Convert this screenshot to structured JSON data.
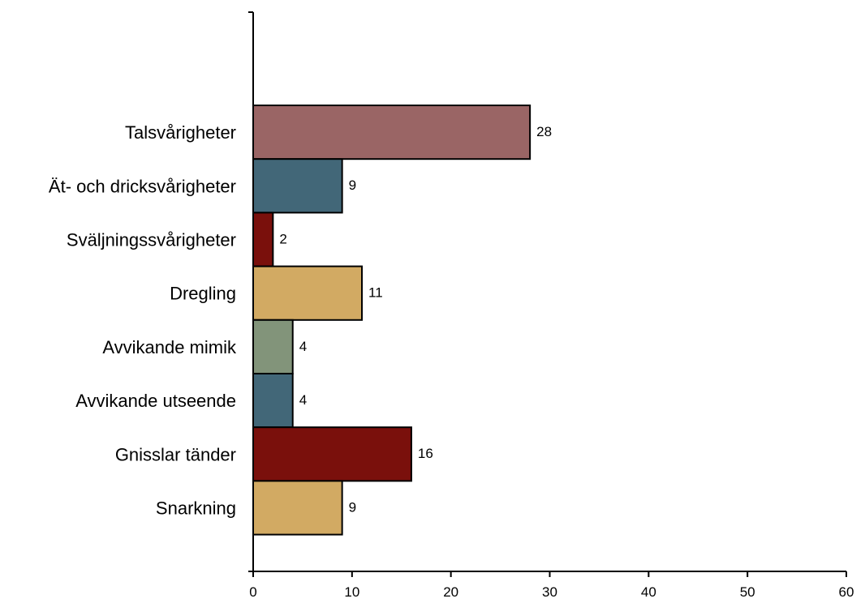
{
  "chart_data": {
    "type": "bar",
    "orientation": "horizontal",
    "categories": [
      "Talsvårigheter",
      "Ät- och dricksvårigheter",
      "Sväljningssvårigheter",
      "Dregling",
      "Avvikande mimik",
      "Avvikande utseende",
      "Gnisslar tänder",
      "Snarkning"
    ],
    "values": [
      28,
      9,
      2,
      11,
      4,
      4,
      16,
      9
    ],
    "bar_colors": [
      "#9a6565",
      "#426778",
      "#7a100c",
      "#d2aa63",
      "#82947a",
      "#426778",
      "#7a100c",
      "#d2aa63"
    ],
    "value_labels": [
      "28",
      "9",
      "2",
      "11",
      "4",
      "4",
      "16",
      "9"
    ],
    "x_ticks": [
      0,
      10,
      20,
      30,
      40,
      50,
      60
    ],
    "x_tick_labels": [
      "0",
      "10",
      "20",
      "30",
      "40",
      "50",
      "60"
    ],
    "xlim": [
      0,
      60
    ],
    "grid": false,
    "legend": false,
    "title": "",
    "xlabel": "",
    "ylabel": ""
  }
}
